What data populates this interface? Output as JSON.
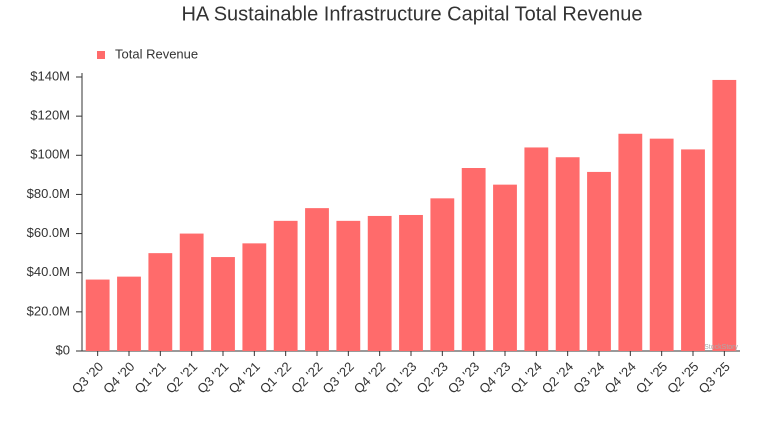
{
  "chart_data": {
    "type": "bar",
    "title": "HA Sustainable Infrastructure Capital Total Revenue",
    "categories": [
      "Q3 '20",
      "Q4 '20",
      "Q1 '21",
      "Q2 '21",
      "Q3 '21",
      "Q4 '21",
      "Q1 '22",
      "Q2 '22",
      "Q3 '22",
      "Q4 '22",
      "Q1 '23",
      "Q2 '23",
      "Q3 '23",
      "Q4 '23",
      "Q1 '24",
      "Q2 '24",
      "Q3 '24",
      "Q4 '24",
      "Q1 '25",
      "Q2 '25",
      "Q3 '25"
    ],
    "series": [
      {
        "name": "Total Revenue",
        "color": "#ff6b6b",
        "values": [
          36500000,
          38000000,
          50000000,
          60000000,
          48000000,
          55000000,
          66500000,
          73000000,
          66500000,
          69000000,
          69500000,
          78000000,
          93500000,
          85000000,
          104000000,
          99000000,
          91500000,
          111000000,
          108500000,
          103000000,
          138500000
        ]
      }
    ],
    "ylim": [
      0,
      140000000
    ],
    "yticks": [
      {
        "value": 0,
        "label": "$0"
      },
      {
        "value": 20000000,
        "label": "$20.0M"
      },
      {
        "value": 40000000,
        "label": "$40.0M"
      },
      {
        "value": 60000000,
        "label": "$60.0M"
      },
      {
        "value": 80000000,
        "label": "$80.0M"
      },
      {
        "value": 100000000,
        "label": "$100M"
      },
      {
        "value": 120000000,
        "label": "$120M"
      },
      {
        "value": 140000000,
        "label": "$140M"
      }
    ],
    "legend": "top-left",
    "grid": false,
    "watermark": "StockStory"
  }
}
